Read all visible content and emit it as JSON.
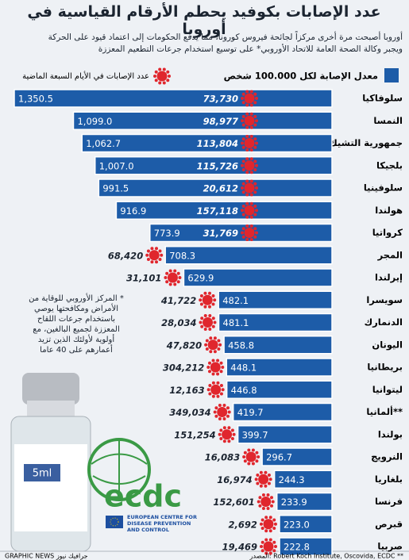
{
  "chart_data": {
    "type": "bar",
    "orientation": "horizontal",
    "title": "عدد الإصابات بكوفيد يحطم الأرقام القياسية في أوروبا",
    "subtitle": [
      "أوروبا أصبحت مرة أخرى مركزاً لجائحة فيروس كورونا، مما يدفع الحكومات إلى اعتماد قيود على الحركة",
      "ويجبر وكالة الصحة العامة للاتحاد الأوروبي* على توسيع استخدام جرعات التطعيم المعززة"
    ],
    "categories": [
      "سلوفاكيا",
      "النمسا",
      "جمهورية التشيك",
      "بلجيكا",
      "سلوفينيا",
      "هولندا",
      "كرواتيا",
      "المجر",
      "إيرلندا",
      "سويسرا",
      "الدنمارك",
      "اليونان",
      "بريطانيا",
      "ليتوانيا",
      "ألمانيا**",
      "بولندا",
      "النرويج",
      "بلغاريا",
      "فرنسا",
      "قبرص",
      "صربيا"
    ],
    "series": [
      {
        "name": "معدل الإصابة لكل 100.000 شخص",
        "color": "#1d5ca8",
        "values": [
          1350.5,
          1099.0,
          1062.7,
          1007.0,
          991.5,
          916.9,
          773.9,
          708.3,
          629.9,
          482.1,
          481.1,
          458.8,
          448.1,
          446.8,
          419.7,
          399.7,
          296.7,
          244.3,
          233.9,
          223.0,
          222.8
        ],
        "value_labels": [
          "1,350.5",
          "1,099.0",
          "1,062.7",
          "1,007.0",
          "991.5",
          "916.9",
          "773.9",
          "708.3",
          "629.9",
          "482.1",
          "481.1",
          "458.8",
          "448.1",
          "446.8",
          "419.7",
          "399.7",
          "296.7",
          "244.3",
          "233.9",
          "223.0",
          "222.8"
        ]
      },
      {
        "name": "عدد الإصابات في الأيام السبعة الماضية",
        "color": "#e0262d",
        "values": [
          73730,
          98977,
          113804,
          115726,
          20612,
          157118,
          31769,
          68420,
          31101,
          41722,
          28034,
          47820,
          304212,
          12163,
          349034,
          151254,
          16083,
          16974,
          152601,
          2692,
          19469
        ],
        "value_labels": [
          "73,730",
          "98,977",
          "113,804",
          "115,726",
          "20,612",
          "157,118",
          "31,769",
          "68,420",
          "31,101",
          "41,722",
          "28,034",
          "47,820",
          "304,212",
          "12,163",
          "349,034",
          "151,254",
          "16,083",
          "16,974",
          "152,601",
          "2,692",
          "19,469"
        ]
      }
    ],
    "note": "* المركز الأوروبي للوقاية من الأمراض ومكافحتها يوصي باستخدام جرعات اللقاح المعززة لجميع البالغين، مع أولوية لأولئك الذين تزيد أعمارهم على 40 عاما",
    "source": "المصدر: Robert Koch Institute, Oscovida, ECDC **",
    "credit": "GRAPHIC NEWS جرافيك نيوز",
    "logo_text": "ecdc",
    "logo_caption": [
      "EUROPEAN CENTRE FOR",
      "DISEASE PREVENTION",
      "AND CONTROL"
    ],
    "vial_label": "5ml"
  }
}
